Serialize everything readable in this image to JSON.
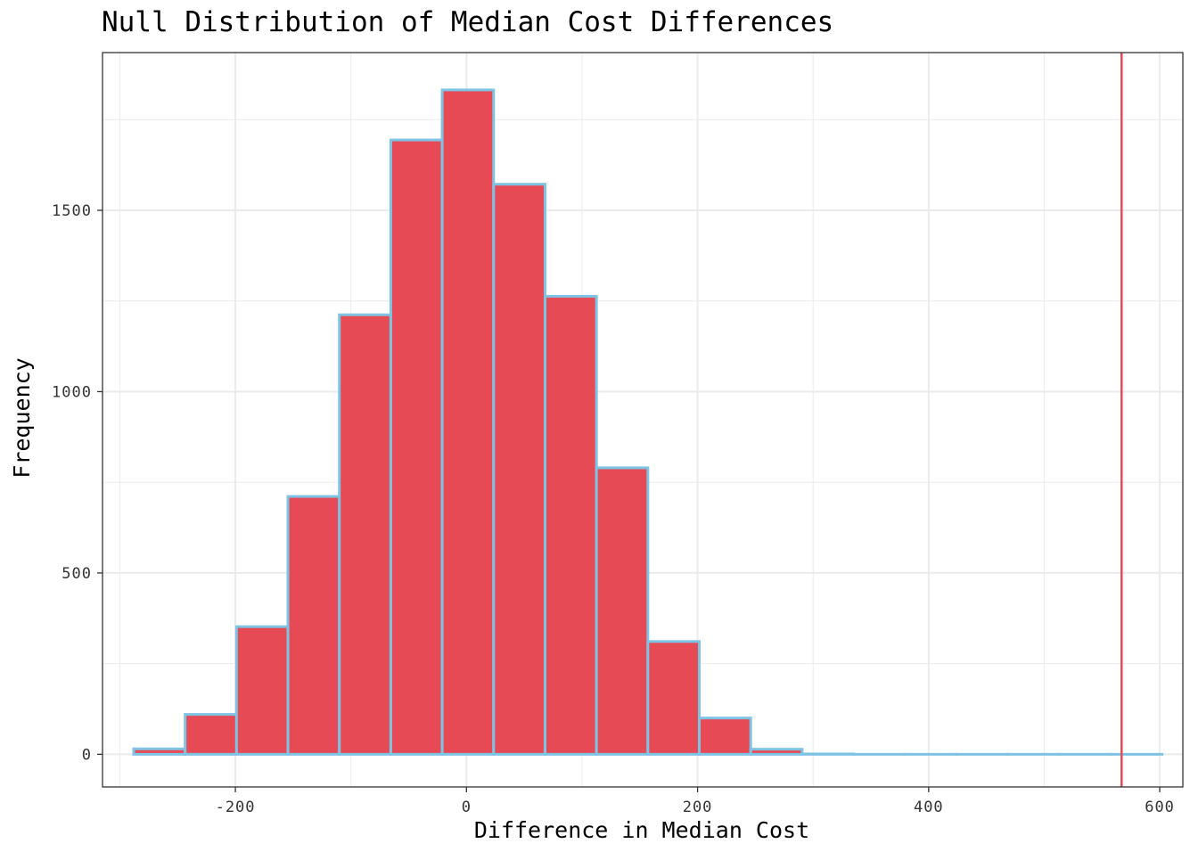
{
  "chart_data": {
    "type": "bar",
    "title": "Null Distribution of Median Cost Differences",
    "xlabel": "Difference in Median Cost",
    "ylabel": "Frequency",
    "xlim": [
      -315,
      620
    ],
    "ylim": [
      -90,
      1935
    ],
    "x_ticks": [
      -200,
      0,
      200,
      400,
      600
    ],
    "x_tick_labels": [
      "-200",
      "0",
      "200",
      "400",
      "600"
    ],
    "y_ticks": [
      0,
      500,
      1000,
      1500
    ],
    "y_tick_labels": [
      "0",
      "500",
      "1000",
      "1500"
    ],
    "grid": true,
    "bin_width": 44.5,
    "bins": [
      {
        "x0": -288,
        "x1": -243.5,
        "count": 15
      },
      {
        "x0": -243.5,
        "x1": -199,
        "count": 110
      },
      {
        "x0": -199,
        "x1": -154.5,
        "count": 352
      },
      {
        "x0": -154.5,
        "x1": -110,
        "count": 711
      },
      {
        "x0": -110,
        "x1": -65.5,
        "count": 1212
      },
      {
        "x0": -65.5,
        "x1": -21,
        "count": 1694
      },
      {
        "x0": -21,
        "x1": 23.5,
        "count": 1832
      },
      {
        "x0": 23.5,
        "x1": 68,
        "count": 1572
      },
      {
        "x0": 68,
        "x1": 112.5,
        "count": 1263
      },
      {
        "x0": 112.5,
        "x1": 157,
        "count": 790
      },
      {
        "x0": 157,
        "x1": 201.5,
        "count": 311
      },
      {
        "x0": 201.5,
        "x1": 246,
        "count": 100
      },
      {
        "x0": 246,
        "x1": 290.5,
        "count": 14
      },
      {
        "x0": 290.5,
        "x1": 335,
        "count": 1
      },
      {
        "x0": 335,
        "x1": 379.5,
        "count": 0
      },
      {
        "x0": 379.5,
        "x1": 424,
        "count": 0
      },
      {
        "x0": 424,
        "x1": 468.5,
        "count": 0
      },
      {
        "x0": 468.5,
        "x1": 513,
        "count": 0
      },
      {
        "x0": 513,
        "x1": 557.5,
        "count": 0
      },
      {
        "x0": 557.5,
        "x1": 602,
        "count": 0
      }
    ],
    "observed_statistic": 567,
    "bar_fill": "#E54A55",
    "bar_outline": "#7FC3E4",
    "reference_line_color": "#E54A55",
    "panel_border": "#333333",
    "grid_color": "#EBEBEB"
  }
}
